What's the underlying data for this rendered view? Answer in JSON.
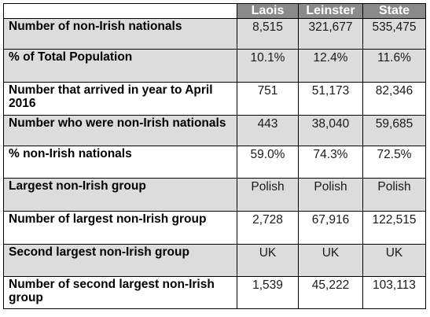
{
  "table": {
    "columns": [
      "",
      "Laois",
      "Leinster",
      "State"
    ],
    "rows": [
      {
        "label": "Number of non-Irish nationals",
        "values": [
          "8,515",
          "321,677",
          "535,475"
        ]
      },
      {
        "label": "% of Total Population",
        "values": [
          "10.1%",
          "12.4%",
          "11.6%"
        ]
      },
      {
        "label": "Number that arrived in year to April 2016",
        "values": [
          "751",
          "51,173",
          "82,346"
        ]
      },
      {
        "label": "Number who were non-Irish nationals",
        "values": [
          "443",
          "38,040",
          "59,685"
        ]
      },
      {
        "label": "% non-Irish nationals",
        "values": [
          "59.0%",
          "74.3%",
          "72.5%"
        ]
      },
      {
        "label": "Largest non-Irish group",
        "values": [
          "Polish",
          "Polish",
          "Polish"
        ]
      },
      {
        "label": "Number of largest non-Irish group",
        "values": [
          "2,728",
          "67,916",
          "122,515"
        ]
      },
      {
        "label": "Second largest non-Irish group",
        "values": [
          "UK",
          "UK",
          "UK"
        ]
      },
      {
        "label": "Number of second largest non-Irish group",
        "values": [
          "1,539",
          "45,222",
          "103,113"
        ]
      }
    ]
  }
}
